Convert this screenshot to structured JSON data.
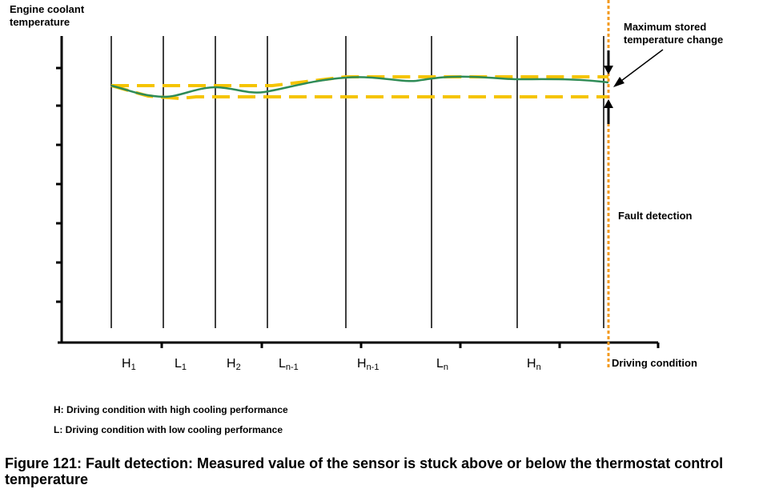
{
  "diagram": {
    "y_axis_label": "Engine coolant temperature",
    "x_axis_label": "Driving condition",
    "segments": [
      {
        "main": "H",
        "sub": "1"
      },
      {
        "main": "L",
        "sub": "1"
      },
      {
        "main": "H",
        "sub": "2"
      },
      {
        "main": "L",
        "sub": "n-1"
      },
      {
        "main": "H",
        "sub": "n-1"
      },
      {
        "main": "L",
        "sub": "n"
      },
      {
        "main": "H",
        "sub": "n"
      }
    ],
    "annotation_max_change": "Maximum stored temperature change",
    "annotation_fault": "Fault detection",
    "colors": {
      "measured": "#2e8b57",
      "band": "#f5c400",
      "fault": "#f39a1e"
    }
  },
  "legend": {
    "h": "H: Driving condition with high cooling performance",
    "l": "L: Driving condition with low cooling performance"
  },
  "caption": "Figure 121: Fault detection: Measured value of the sensor is stuck above or below the thermostat control temperature"
}
